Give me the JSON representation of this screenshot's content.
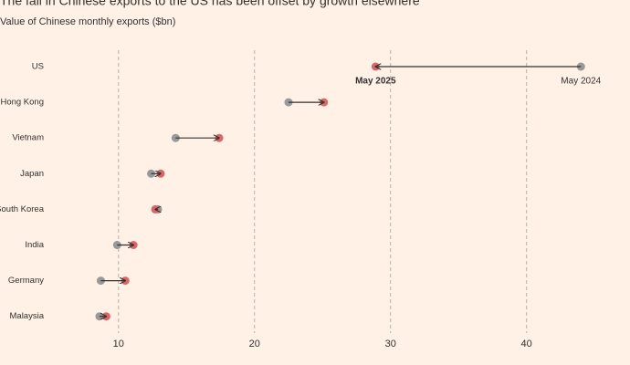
{
  "chart_data": {
    "type": "arrow-dumbbell",
    "title": "The fall in Chinese exports to the US has been offset by growth elsewhere",
    "subtitle": "Value of Chinese monthly exports ($bn)",
    "categories": [
      "US",
      "Hong Kong",
      "Vietnam",
      "Japan",
      "South Korea",
      "India",
      "Germany",
      "Malaysia"
    ],
    "series": [
      {
        "name": "May 2024",
        "color": "#999999",
        "values": [
          44.0,
          22.5,
          14.2,
          12.4,
          12.9,
          9.9,
          8.7,
          8.6
        ]
      },
      {
        "name": "May 2025",
        "color": "#d9676a",
        "values": [
          28.9,
          25.1,
          17.4,
          13.1,
          12.7,
          11.1,
          10.5,
          9.1
        ]
      }
    ],
    "xlim": [
      8,
      46.6
    ],
    "xticks": [
      10,
      20,
      30,
      40
    ],
    "grid": true
  }
}
